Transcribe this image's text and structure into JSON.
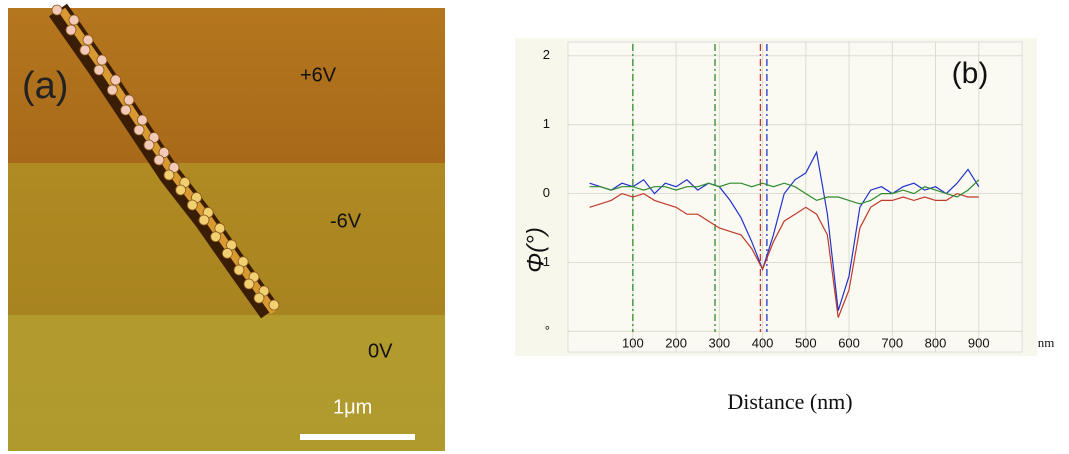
{
  "panel_a": {
    "label": "(a)",
    "annotations": [
      "+6V",
      "-6V",
      "0V"
    ],
    "scale_bar": "1μm"
  },
  "chart_data": {
    "type": "line",
    "annotation": "(b)",
    "y_label": "Φ(°)",
    "x_label": "Distance (nm)",
    "x_unit": "nm",
    "xlim": [
      -50,
      1000
    ],
    "ylim": [
      -2.3,
      2.2
    ],
    "xticks": [
      100,
      200,
      300,
      400,
      500,
      600,
      700,
      800,
      900
    ],
    "yticks": [
      {
        "value": -2,
        "label": "°"
      },
      -1,
      0,
      1,
      2
    ],
    "grid": true,
    "x": [
      0,
      25,
      50,
      75,
      100,
      125,
      150,
      175,
      200,
      225,
      250,
      275,
      300,
      325,
      350,
      375,
      400,
      425,
      450,
      475,
      500,
      525,
      550,
      575,
      600,
      625,
      650,
      675,
      700,
      725,
      750,
      775,
      800,
      825,
      850,
      875,
      900
    ],
    "series": [
      {
        "color": "#2233cc",
        "values": [
          0.15,
          0.1,
          0.05,
          0.15,
          0.1,
          0.2,
          0.0,
          0.15,
          0.1,
          0.2,
          0.05,
          0.15,
          0.1,
          -0.1,
          -0.35,
          -0.7,
          -1.1,
          -0.6,
          0.0,
          0.2,
          0.3,
          0.6,
          -0.3,
          -1.7,
          -1.2,
          -0.2,
          0.05,
          0.1,
          0.0,
          0.1,
          0.15,
          0.05,
          0.1,
          0.0,
          0.15,
          0.35,
          0.1
        ]
      },
      {
        "color": "#c0392b",
        "values": [
          -0.2,
          -0.15,
          -0.1,
          0.0,
          -0.05,
          0.0,
          -0.1,
          -0.15,
          -0.2,
          -0.3,
          -0.3,
          -0.4,
          -0.5,
          -0.55,
          -0.6,
          -0.8,
          -1.1,
          -0.7,
          -0.4,
          -0.3,
          -0.2,
          -0.3,
          -0.6,
          -1.8,
          -1.4,
          -0.5,
          -0.2,
          -0.1,
          -0.1,
          -0.05,
          -0.1,
          -0.05,
          -0.1,
          -0.1,
          0.0,
          -0.05,
          -0.05
        ]
      },
      {
        "color": "#2e8b2e",
        "values": [
          0.1,
          0.1,
          0.05,
          0.1,
          0.1,
          0.05,
          0.1,
          0.1,
          0.05,
          0.1,
          0.1,
          0.15,
          0.1,
          0.15,
          0.15,
          0.1,
          0.15,
          0.1,
          0.15,
          0.1,
          0.0,
          -0.1,
          -0.05,
          -0.05,
          -0.1,
          -0.15,
          -0.1,
          0.0,
          0.0,
          0.05,
          0.0,
          0.1,
          0.05,
          0.0,
          -0.05,
          0.05,
          0.2
        ]
      }
    ],
    "markers": [
      {
        "x": 100,
        "color": "#2e8b2e"
      },
      {
        "x": 290,
        "color": "#2e8b2e"
      },
      {
        "x": 395,
        "color": "#c0392b"
      },
      {
        "x": 410,
        "color": "#2233cc"
      }
    ]
  }
}
